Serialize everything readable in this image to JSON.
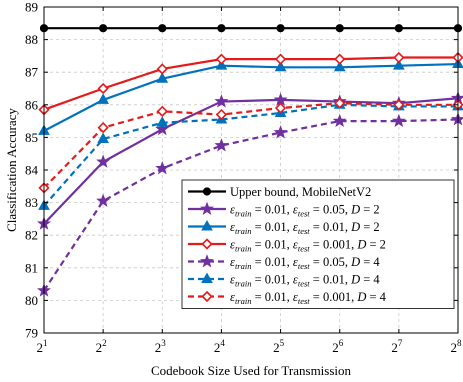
{
  "chart_data": {
    "type": "line",
    "xlabel": "Codebook Size Used for Transmission",
    "ylabel": "Classification Accuracy",
    "x": [
      1,
      2,
      3,
      4,
      5,
      6,
      7,
      8
    ],
    "xtick_labels": [
      {
        "base": "2",
        "exp": "1"
      },
      {
        "base": "2",
        "exp": "2"
      },
      {
        "base": "2",
        "exp": "3"
      },
      {
        "base": "2",
        "exp": "4"
      },
      {
        "base": "2",
        "exp": "5"
      },
      {
        "base": "2",
        "exp": "6"
      },
      {
        "base": "2",
        "exp": "7"
      },
      {
        "base": "2",
        "exp": "8"
      }
    ],
    "x_scale": "log2 (codebook size = 2^x)",
    "ylim": [
      79,
      89
    ],
    "yticks": [
      79,
      80,
      81,
      82,
      83,
      84,
      85,
      86,
      87,
      88,
      89
    ],
    "grid": true,
    "legend_position": "lower-right",
    "series": [
      {
        "name": "Upper bound, MobileNetV2",
        "color": "#000000",
        "dash": "solid",
        "marker": "circle",
        "legend": {
          "text": "Upper bound, MobileNetV2"
        },
        "values": [
          88.35,
          88.35,
          88.35,
          88.35,
          88.35,
          88.35,
          88.35,
          88.35
        ]
      },
      {
        "name": "εtrain = 0.01, εtest = 0.05, D = 2",
        "color": "#7030a0",
        "dash": "solid",
        "marker": "star",
        "legend": {
          "e_train": "0.01",
          "e_test": "0.05",
          "d": "2"
        },
        "values": [
          82.35,
          84.25,
          85.25,
          86.1,
          86.15,
          86.1,
          86.05,
          86.2
        ]
      },
      {
        "name": "εtrain = 0.01, εtest = 0.01, D = 2",
        "color": "#0072bd",
        "dash": "solid",
        "marker": "triangle",
        "legend": {
          "e_train": "0.01",
          "e_test": "0.01",
          "d": "2"
        },
        "values": [
          85.2,
          86.15,
          86.8,
          87.2,
          87.15,
          87.15,
          87.2,
          87.25
        ]
      },
      {
        "name": "εtrain = 0.01, εtest = 0.001, D = 2",
        "color": "#e41a1c",
        "dash": "solid",
        "marker": "diamond",
        "legend": {
          "e_train": "0.01",
          "e_test": "0.001",
          "d": "2"
        },
        "values": [
          85.85,
          86.5,
          87.1,
          87.4,
          87.4,
          87.4,
          87.45,
          87.45
        ]
      },
      {
        "name": "εtrain = 0.01, εtest = 0.05, D = 4",
        "color": "#7030a0",
        "dash": "dashed",
        "marker": "star",
        "legend": {
          "e_train": "0.01",
          "e_test": "0.05",
          "d": "4"
        },
        "values": [
          80.3,
          83.05,
          84.05,
          84.75,
          85.15,
          85.5,
          85.5,
          85.55
        ]
      },
      {
        "name": "εtrain = 0.01, εtest = 0.01, D = 4",
        "color": "#0072bd",
        "dash": "dashed",
        "marker": "triangle",
        "legend": {
          "e_train": "0.01",
          "e_test": "0.01",
          "d": "4"
        },
        "values": [
          82.9,
          84.95,
          85.45,
          85.55,
          85.75,
          86.0,
          85.95,
          85.95
        ]
      },
      {
        "name": "εtrain = 0.01, εtest = 0.001, D = 4",
        "color": "#e41a1c",
        "dash": "dashed",
        "marker": "diamond",
        "legend": {
          "e_train": "0.01",
          "e_test": "0.001",
          "d": "4"
        },
        "values": [
          83.45,
          85.3,
          85.8,
          85.7,
          85.9,
          86.05,
          86.0,
          86.0
        ]
      }
    ]
  }
}
